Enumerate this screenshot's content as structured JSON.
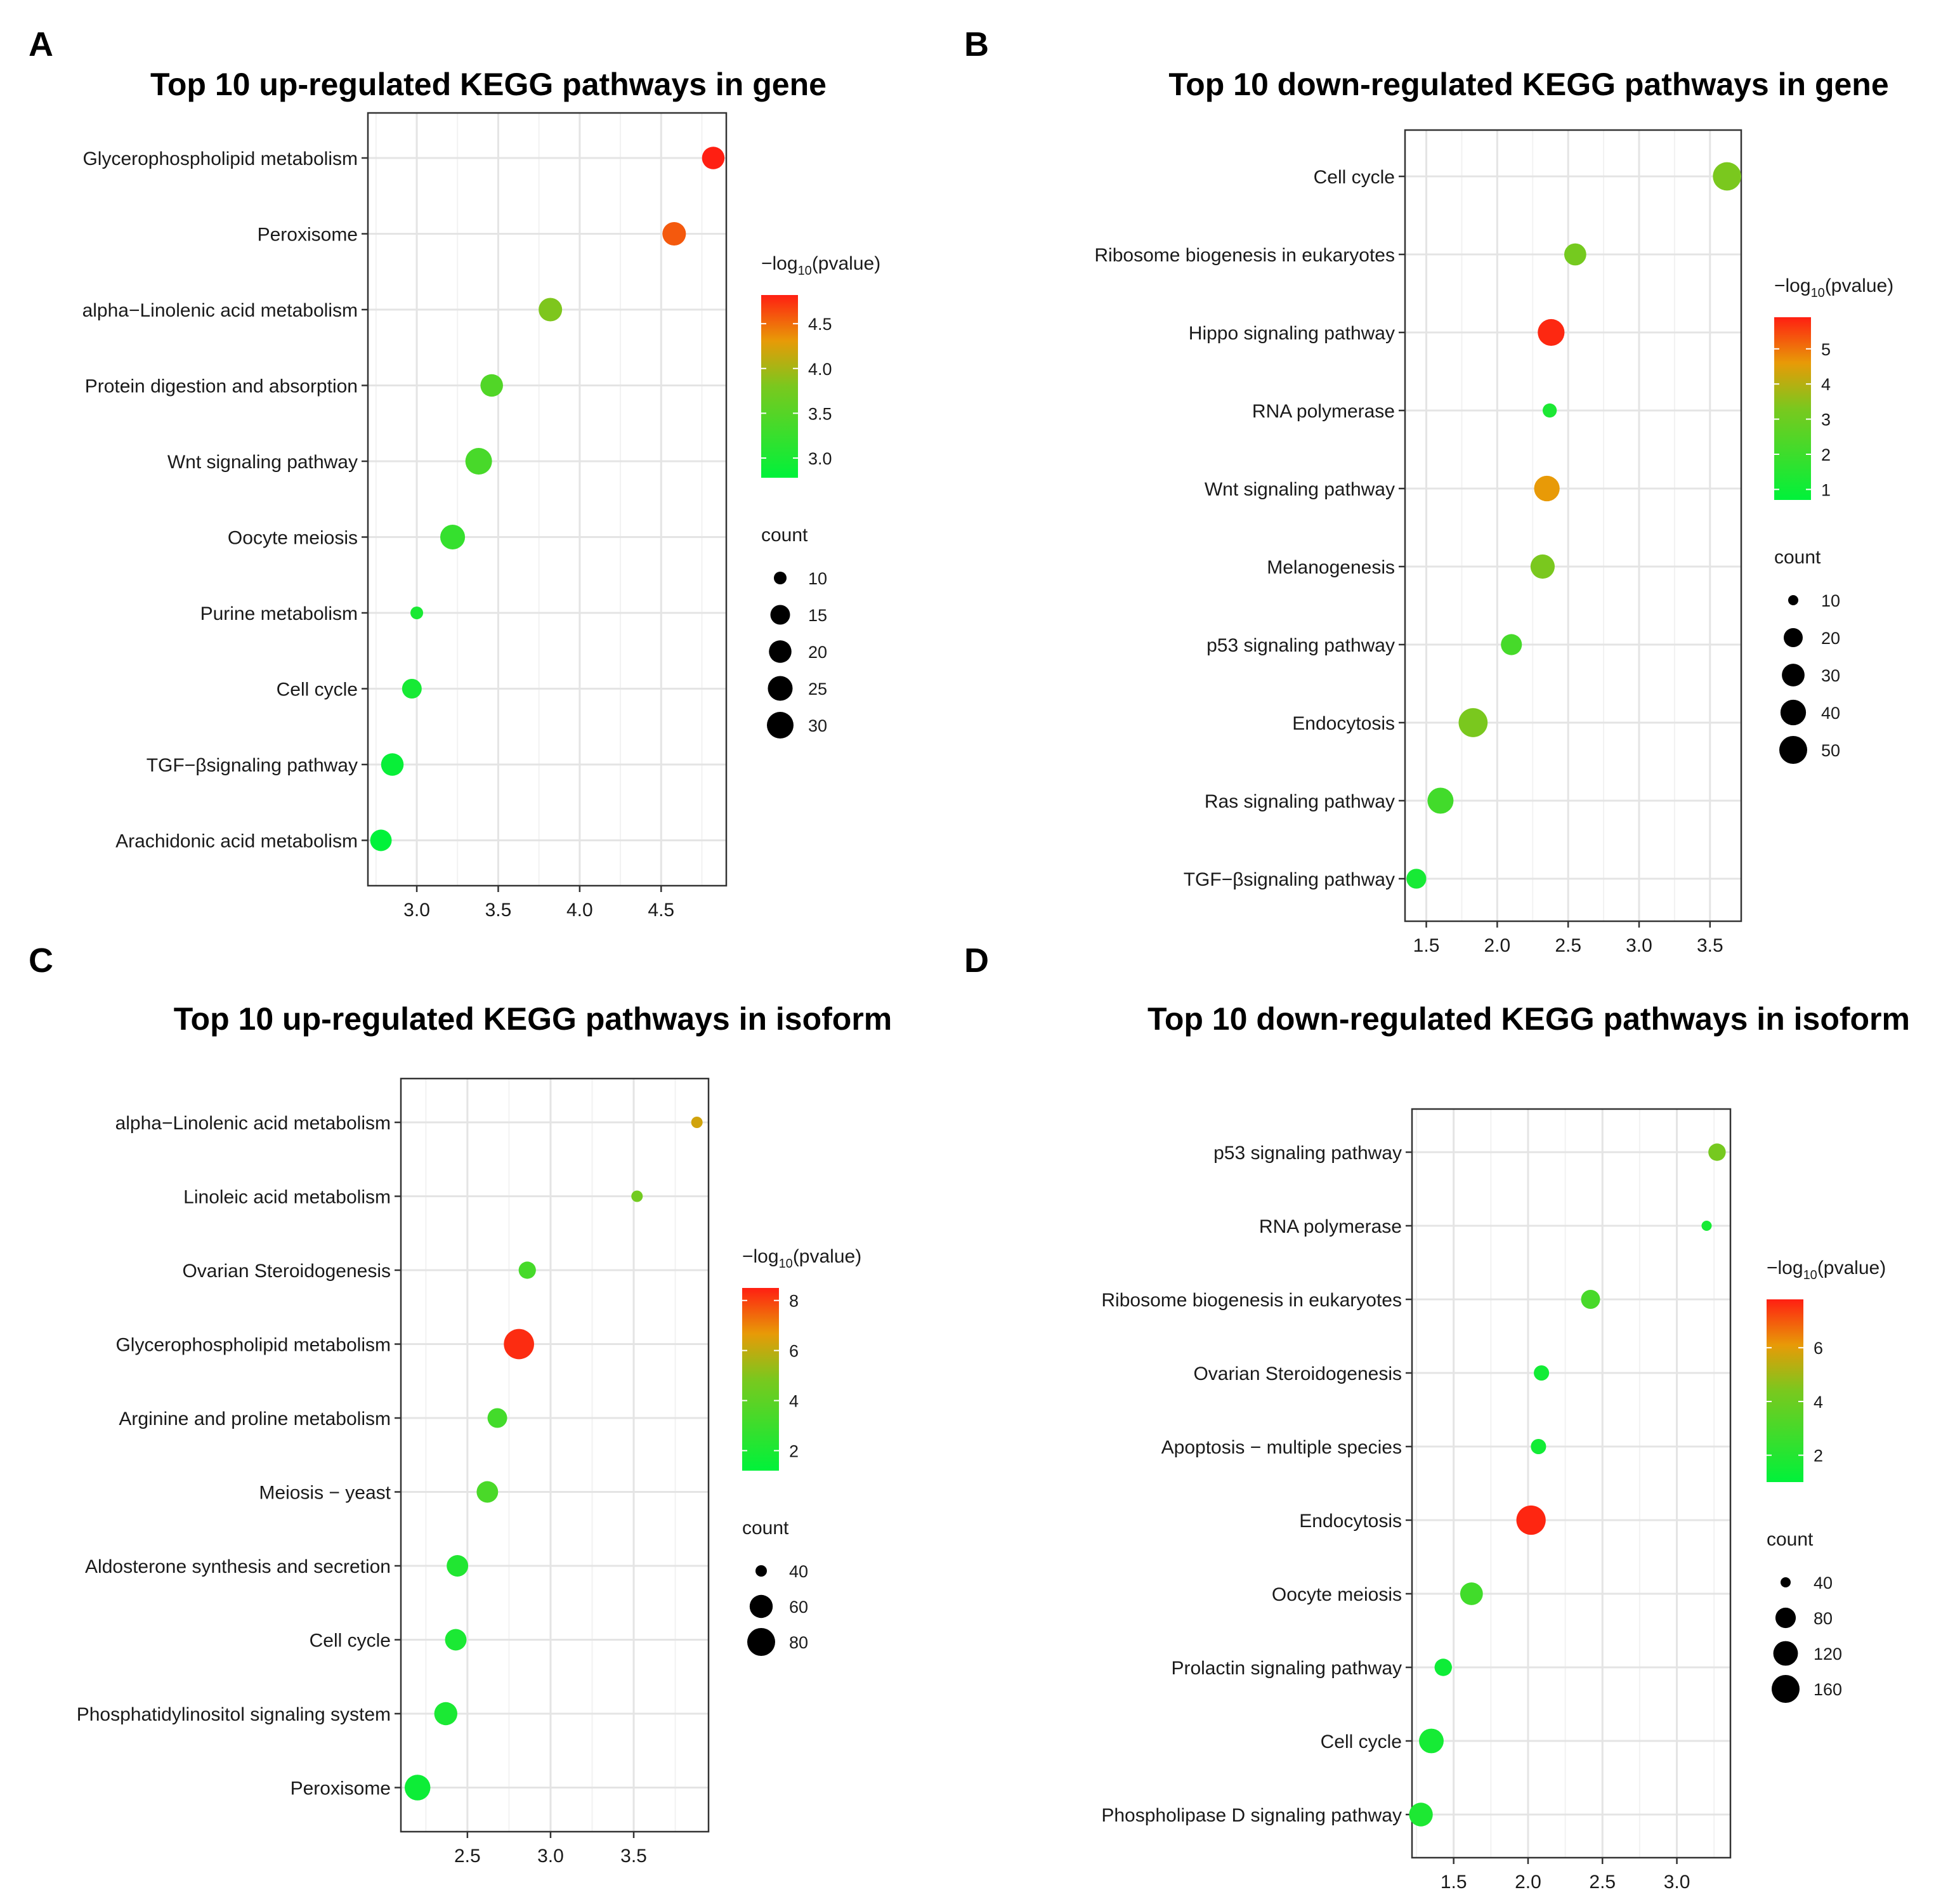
{
  "chart_data": [
    {
      "panel": "A",
      "type": "scatter",
      "title": "Top 10 up-regulated KEGG pathways in gene",
      "categories": [
        "Glycerophospholipid metabolism",
        "Peroxisome",
        "alpha−Linolenic acid metabolism",
        "Protein digestion and absorption",
        "Wnt signaling pathway",
        "Oocyte meiosis",
        "Purine metabolism",
        "Cell cycle",
        "TGF−βsignaling pathway",
        "Arachidonic acid metabolism"
      ],
      "x": [
        4.82,
        4.58,
        3.82,
        3.46,
        3.38,
        3.22,
        3.0,
        2.97,
        2.85,
        2.78
      ],
      "pvalue_log": [
        4.82,
        4.58,
        3.82,
        3.46,
        3.38,
        3.22,
        3.0,
        2.97,
        2.85,
        2.78
      ],
      "count": [
        20,
        22,
        22,
        20,
        30,
        25,
        10,
        15,
        20,
        18
      ],
      "xlim": [
        2.7,
        4.9
      ],
      "xticks": [
        "3.0",
        "3.5",
        "4.0",
        "4.5"
      ],
      "color_legend": {
        "title": "−log",
        "subscript": "10",
        "suffix": "(pvalue)",
        "min": 2.78,
        "max": 4.82,
        "ticks": [
          "3.0",
          "3.5",
          "4.0",
          "4.5"
        ]
      },
      "size_legend": {
        "title": "count",
        "values": [
          "10",
          "15",
          "20",
          "25",
          "30"
        ]
      }
    },
    {
      "panel": "B",
      "type": "scatter",
      "title": "Top 10 down-regulated KEGG pathways in gene",
      "categories": [
        "Cell cycle",
        "Ribosome biogenesis in eukaryotes",
        "Hippo signaling pathway",
        "RNA polymerase",
        "Wnt signaling pathway",
        "Melanogenesis",
        "p53 signaling pathway",
        "Endocytosis",
        "Ras signaling pathway",
        "TGF−βsignaling pathway"
      ],
      "x": [
        3.62,
        2.55,
        2.38,
        2.37,
        2.35,
        2.32,
        2.1,
        1.83,
        1.6,
        1.43
      ],
      "pvalue_log": [
        3.3,
        3.2,
        5.8,
        1.3,
        4.6,
        3.3,
        2.2,
        3.3,
        2.1,
        1.2
      ],
      "count": [
        52,
        28,
        45,
        12,
        40,
        35,
        25,
        55,
        42,
        22
      ],
      "xlim": [
        1.35,
        3.72
      ],
      "xticks": [
        "1.5",
        "2.0",
        "2.5",
        "3.0",
        "3.5"
      ],
      "color_legend": {
        "title": "−log",
        "subscript": "10",
        "suffix": "(pvalue)",
        "min": 0.7,
        "max": 5.9,
        "ticks": [
          "1",
          "2",
          "3",
          "4",
          "5"
        ]
      },
      "size_legend": {
        "title": "count",
        "values": [
          "10",
          "20",
          "30",
          "40",
          "50"
        ]
      }
    },
    {
      "panel": "C",
      "type": "scatter",
      "title": "Top 10 up-regulated KEGG pathways in isoform",
      "categories": [
        "alpha−Linolenic acid metabolism",
        "Linoleic acid metabolism",
        "Ovarian Steroidogenesis",
        "Glycerophospholipid metabolism",
        "Arginine and proline metabolism",
        "Meiosis − yeast",
        "Aldosterone synthesis and secretion",
        "Cell cycle",
        "Phosphatidylinositol signaling system",
        "Peroxisome"
      ],
      "x": [
        3.88,
        3.52,
        2.86,
        2.81,
        2.68,
        2.62,
        2.44,
        2.43,
        2.37,
        2.2
      ],
      "pvalue_log": [
        6.3,
        4.6,
        3.3,
        8.3,
        3.2,
        3.4,
        2.2,
        2.0,
        2.0,
        1.6
      ],
      "count": [
        30,
        28,
        45,
        95,
        50,
        55,
        55,
        55,
        60,
        70
      ],
      "xlim": [
        2.1,
        3.95
      ],
      "xticks": [
        "2.5",
        "3.0",
        "3.5"
      ],
      "color_legend": {
        "title": "−log",
        "subscript": "10",
        "suffix": "(pvalue)",
        "min": 1.2,
        "max": 8.5,
        "ticks": [
          "2",
          "4",
          "6",
          "8"
        ]
      },
      "size_legend": {
        "title": "count",
        "values": [
          "40",
          "60",
          "80"
        ]
      }
    },
    {
      "panel": "D",
      "type": "scatter",
      "title": "Top 10 down-regulated KEGG pathways in isoform",
      "categories": [
        "p53 signaling pathway",
        "RNA polymerase",
        "Ribosome biogenesis in eukaryotes",
        "Ovarian Steroidogenesis",
        "Apoptosis − multiple species",
        "Endocytosis",
        "Oocyte meiosis",
        "Prolactin signaling pathway",
        "Cell cycle",
        "Phospholipase D signaling pathway"
      ],
      "x": [
        3.27,
        3.2,
        2.42,
        2.09,
        2.07,
        2.02,
        1.62,
        1.43,
        1.35,
        1.28
      ],
      "pvalue_log": [
        4.3,
        1.6,
        3.0,
        1.5,
        1.5,
        7.7,
        2.8,
        1.4,
        1.6,
        1.8
      ],
      "count": [
        60,
        30,
        70,
        50,
        50,
        180,
        100,
        60,
        120,
        110
      ],
      "xlim": [
        1.22,
        3.36
      ],
      "xticks": [
        "1.5",
        "2.0",
        "2.5",
        "3.0"
      ],
      "color_legend": {
        "title": "−log",
        "subscript": "10",
        "suffix": "(pvalue)",
        "min": 1.0,
        "max": 7.8,
        "ticks": [
          "2",
          "4",
          "6"
        ]
      },
      "size_legend": {
        "title": "count",
        "values": [
          "40",
          "80",
          "120",
          "160"
        ]
      }
    }
  ]
}
